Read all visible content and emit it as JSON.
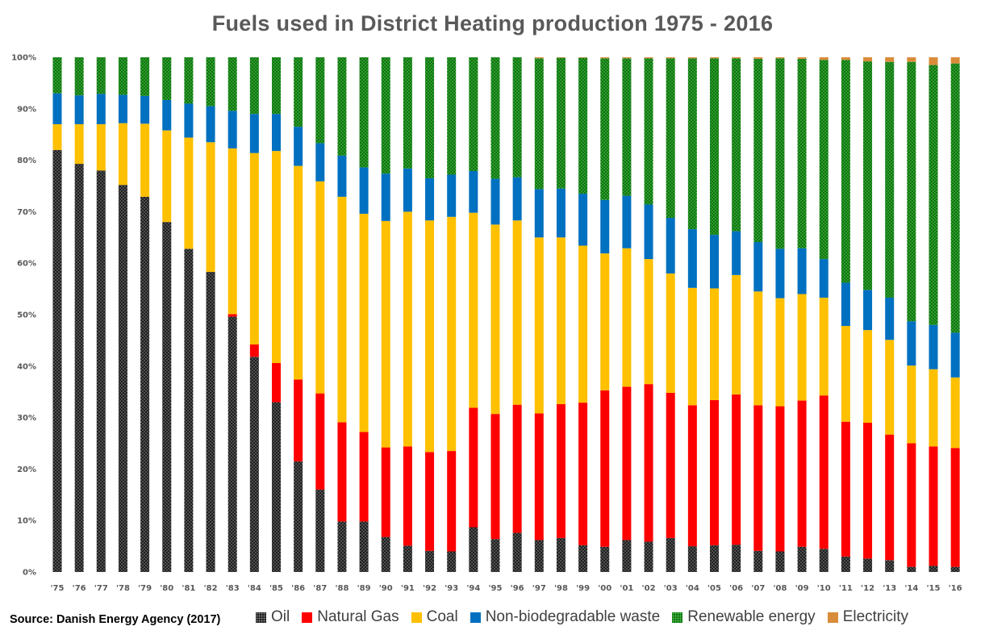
{
  "chart_data": {
    "type": "bar",
    "stacked": true,
    "title": "Fuels used in District Heating production 1975 - 2016",
    "xlabel": "",
    "ylabel": "",
    "ylim": [
      0,
      100
    ],
    "y_ticks": [
      "0%",
      "10%",
      "20%",
      "30%",
      "40%",
      "50%",
      "60%",
      "70%",
      "80%",
      "90%",
      "100%"
    ],
    "categories": [
      "'75",
      "'76",
      "'77",
      "'78",
      "'79",
      "'80",
      "'81",
      "'82",
      "'83",
      "'84",
      "'85",
      "'86",
      "'87",
      "'88",
      "'89",
      "'90",
      "'91",
      "'92",
      "'93",
      "'94",
      "'95",
      "'96",
      "'97",
      "'98",
      "'99",
      "'00",
      "'01",
      "'02",
      "'03",
      "'04",
      "'05",
      "'06",
      "'07",
      "'08",
      "'09",
      "'10",
      "'11",
      "'12",
      "'13",
      "'14",
      "'15",
      "'16"
    ],
    "series": [
      {
        "name": "Oil",
        "color": "#202020",
        "values": [
          82,
          79.3,
          78,
          75.2,
          72.9,
          68,
          62.8,
          58.3,
          49.6,
          41.8,
          33,
          21.5,
          16,
          9.8,
          9.8,
          6.8,
          5.1,
          4.1,
          4,
          8.7,
          6.4,
          7.6,
          6.2,
          6.6,
          5.2,
          4.9,
          6.2,
          5.9,
          6.6,
          5,
          5.2,
          5.3,
          4.1,
          4,
          4.9,
          4.5,
          3,
          2.6,
          2.3,
          1,
          1.2,
          1
        ]
      },
      {
        "name": "Natural Gas",
        "color": "#ff0000",
        "values": [
          0,
          0,
          0,
          0,
          0,
          0,
          0,
          0,
          0.5,
          2.4,
          7.6,
          15.9,
          18.7,
          19.3,
          17.4,
          17.4,
          19.3,
          19.2,
          19.5,
          23.2,
          24.3,
          24.9,
          24.6,
          26,
          27.7,
          30.4,
          29.8,
          30.6,
          28.2,
          27.4,
          28.2,
          29.2,
          28.3,
          28.2,
          28.4,
          29.8,
          26.2,
          26.4,
          24.4,
          24,
          23.2,
          23.1
        ]
      },
      {
        "name": "Coal",
        "color": "#ffc000",
        "values": [
          5,
          7.7,
          9,
          12,
          14.2,
          17.8,
          21.6,
          25.2,
          32.2,
          37.2,
          41.2,
          41.5,
          41.2,
          43.8,
          42.4,
          44,
          45.6,
          45,
          45.5,
          37.9,
          36.8,
          35.8,
          34.2,
          32.4,
          30.5,
          26.6,
          26.9,
          24.3,
          23.2,
          22.8,
          21.7,
          23.2,
          22.1,
          21,
          20.7,
          19,
          18.6,
          18,
          18.4,
          15.1,
          15,
          13.7
        ]
      },
      {
        "name": "Non-biodegradable waste",
        "color": "#0070c0",
        "values": [
          6,
          5.6,
          5.9,
          5.5,
          5.4,
          5.9,
          6.6,
          7,
          7.3,
          7.6,
          7.2,
          7.6,
          7.4,
          8,
          9,
          9.2,
          8.4,
          8.2,
          8.2,
          8.1,
          8.9,
          8.4,
          9.4,
          9.5,
          10.1,
          10.4,
          10.2,
          10.6,
          10.8,
          11.4,
          10.4,
          8.5,
          9.6,
          9.6,
          8.9,
          7.5,
          8.4,
          7.8,
          8.2,
          8.6,
          8.6,
          8.7
        ]
      },
      {
        "name": "Renewable energy",
        "color": "#0a7a0a",
        "values": [
          7,
          7.4,
          7.1,
          7.3,
          7.5,
          8.3,
          9,
          9.5,
          10.4,
          11,
          11,
          13.5,
          16.7,
          19.1,
          21.4,
          22.6,
          21.6,
          23.5,
          22.8,
          22.1,
          23.6,
          23.3,
          25.4,
          25.4,
          26.4,
          27.5,
          26.7,
          28.4,
          31,
          33.2,
          34.3,
          33.6,
          35.6,
          37,
          36.8,
          38.7,
          43.3,
          44.4,
          45.8,
          50.4,
          50.5,
          52.3
        ]
      },
      {
        "name": "Electricity",
        "color": "#d98c3a",
        "values": [
          0,
          0,
          0,
          0,
          0,
          0,
          0,
          0,
          0,
          0,
          0,
          0,
          0,
          0,
          0,
          0,
          0,
          0,
          0,
          0,
          0,
          0,
          0.2,
          0.1,
          0.1,
          0.2,
          0.2,
          0.2,
          0.2,
          0.2,
          0.2,
          0.2,
          0.3,
          0.2,
          0.3,
          0.5,
          0.5,
          0.8,
          0.9,
          0.9,
          1.5,
          1.2
        ]
      }
    ]
  },
  "source_note": "Source: Danish Energy Agency (2017)",
  "legend": [
    {
      "label": "Oil",
      "swatch": "dots-black"
    },
    {
      "label": "Natural Gas",
      "swatch": "#ff0000"
    },
    {
      "label": "Coal",
      "swatch": "#ffc000"
    },
    {
      "label": "Non-biodegradable waste",
      "swatch": "#0070c0"
    },
    {
      "label": "Renewable energy",
      "swatch": "dots-green"
    },
    {
      "label": "Electricity",
      "swatch": "#d98c3a"
    }
  ]
}
